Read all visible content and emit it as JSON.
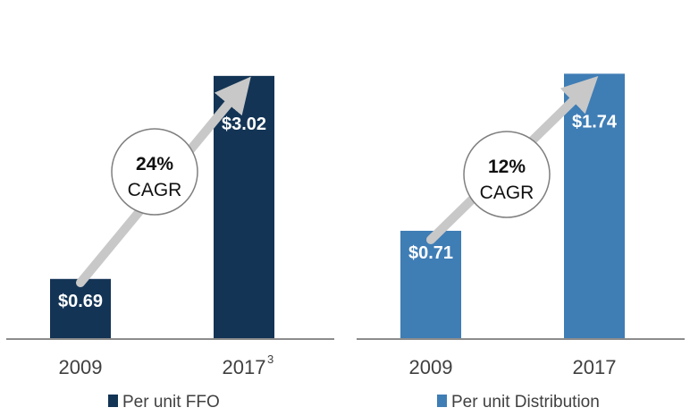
{
  "chart_data": [
    {
      "type": "bar",
      "categories": [
        "2009",
        "2017"
      ],
      "category_footnotes": [
        "",
        "3"
      ],
      "series": [
        {
          "name": "Per unit FFO",
          "values": [
            0.69,
            3.02
          ],
          "color": "#133455"
        }
      ],
      "data_labels": [
        "$0.69",
        "$3.02"
      ],
      "annotation": {
        "value": "24%",
        "label": "CAGR"
      },
      "ylim": [
        0,
        3.08
      ],
      "grid": false,
      "legend": "bottom"
    },
    {
      "type": "bar",
      "categories": [
        "2009",
        "2017"
      ],
      "category_footnotes": [
        "",
        ""
      ],
      "series": [
        {
          "name": "Per unit Distribution",
          "values": [
            0.71,
            1.74
          ],
          "color": "#3f7db5"
        }
      ],
      "data_labels": [
        "$0.71",
        "$1.74"
      ],
      "annotation": {
        "value": "12%",
        "label": "CAGR"
      },
      "ylim": [
        0,
        1.76
      ],
      "grid": false,
      "legend": "bottom"
    }
  ]
}
